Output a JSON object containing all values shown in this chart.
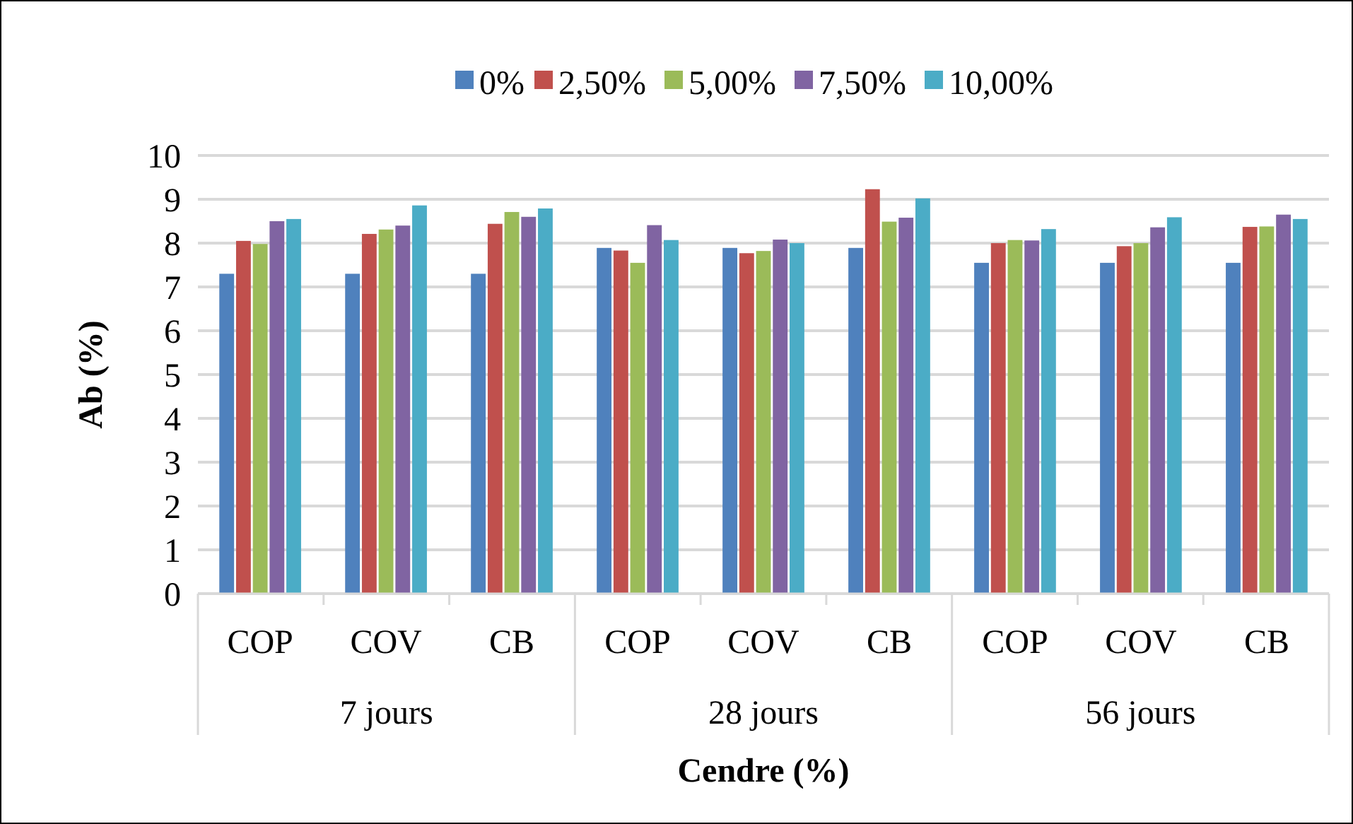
{
  "chart_data": {
    "type": "bar",
    "xlabel": "Cendre (%)",
    "ylabel": "Ab (%)",
    "categories": [
      "COP",
      "COV",
      "CB",
      "COP",
      "COV",
      "CB",
      "COP",
      "COV",
      "CB"
    ],
    "annotations": [
      "7 jours",
      "28 jours",
      "56 jours"
    ],
    "series": [
      {
        "name": "0%",
        "color": "#4f81bd",
        "values": [
          7.3,
          7.3,
          7.3,
          7.89,
          7.89,
          7.89,
          7.55,
          7.55,
          7.55
        ]
      },
      {
        "name": "2,50%",
        "color": "#c0504d",
        "values": [
          8.05,
          8.21,
          8.44,
          7.83,
          7.77,
          9.23,
          8.0,
          7.93,
          8.37
        ]
      },
      {
        "name": "5,00%",
        "color": "#9bbb59",
        "values": [
          7.98,
          8.31,
          8.71,
          7.55,
          7.82,
          8.49,
          8.07,
          8.0,
          8.38
        ]
      },
      {
        "name": "7,50%",
        "color": "#8064a2",
        "values": [
          8.5,
          8.4,
          8.6,
          8.41,
          8.08,
          8.58,
          8.06,
          8.36,
          8.65
        ]
      },
      {
        "name": "10,00%",
        "color": "#4bacc6",
        "values": [
          8.55,
          8.86,
          8.79,
          8.07,
          8.0,
          9.02,
          8.32,
          8.59,
          8.55
        ]
      }
    ],
    "ylim": [
      0,
      10
    ],
    "yticks": [
      0,
      1,
      2,
      3,
      4,
      5,
      6,
      7,
      8,
      9,
      10
    ],
    "grid": "y",
    "legend": "top"
  }
}
